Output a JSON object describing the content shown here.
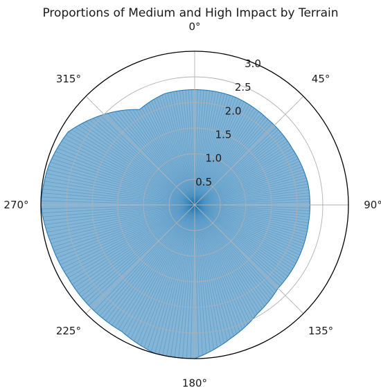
{
  "chart_data": {
    "type": "polar-area",
    "title": "Proportions of Medium and High Impact by Terrain",
    "theta_direction": "clockwise",
    "theta_zero_location": "top",
    "angle_labels": [
      "0°",
      "45°",
      "90°",
      "135°",
      "180°",
      "225°",
      "270°",
      "315°"
    ],
    "radial_ticks": [
      0.5,
      1.0,
      1.5,
      2.0,
      2.5,
      3.0
    ],
    "radial_tick_labels": [
      "0.5",
      "1.0",
      "1.5",
      "2.0",
      "2.5",
      "3.0"
    ],
    "rlim": [
      0,
      3.0
    ],
    "grid": true,
    "series_color": "#1f77b4",
    "radius_profile": {
      "theta_deg": [
        0,
        20,
        40,
        60,
        80,
        100,
        120,
        135,
        150,
        165,
        180,
        195,
        210,
        225,
        240,
        255,
        270,
        285,
        300,
        315,
        330,
        345,
        360
      ],
      "r": [
        2.25,
        2.25,
        2.2,
        2.2,
        2.25,
        2.25,
        2.28,
        2.3,
        2.45,
        2.7,
        3.0,
        3.0,
        2.85,
        2.85,
        2.85,
        2.9,
        3.0,
        2.95,
        2.85,
        2.5,
        2.15,
        2.25,
        2.25
      ]
    }
  }
}
